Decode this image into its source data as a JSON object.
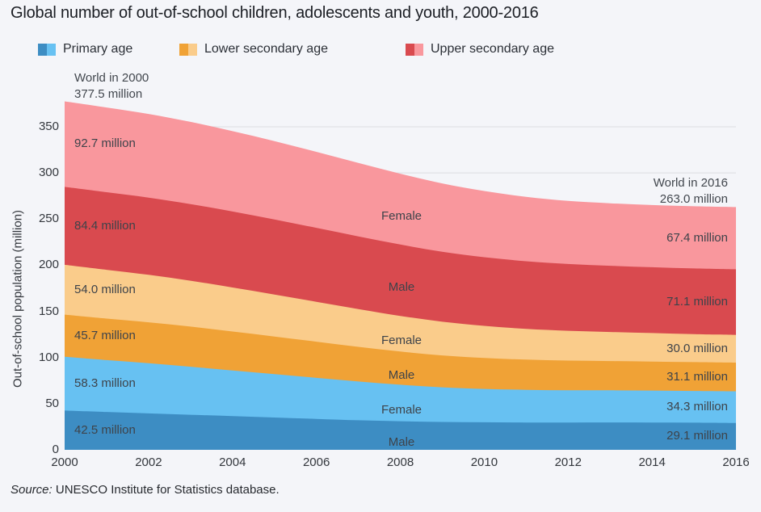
{
  "title": "Global number of out-of-school children, adolescents and youth, 2000-2016",
  "colors": {
    "background": "#F4F5F9",
    "gridline": "#E0E2E6",
    "primary_male": "#3D8DC3",
    "primary_female": "#67C1F2",
    "lower_secondary_male": "#F0A236",
    "lower_secondary_female": "#FACC8B",
    "upper_secondary_male": "#D94A4F",
    "upper_secondary_female": "#F9979D"
  },
  "legend": [
    {
      "label": "Primary age",
      "dark": "#3D8DC3",
      "light": "#67C1F2"
    },
    {
      "label": "Lower secondary age",
      "dark": "#F0A236",
      "light": "#FACC8B"
    },
    {
      "label": "Upper secondary age",
      "dark": "#D94A4F",
      "light": "#F9979D"
    }
  ],
  "annotations": {
    "start": {
      "line1": "World in 2000",
      "line2": "377.5 million"
    },
    "end": {
      "line1": "World in 2016",
      "line2": "263.0 million"
    }
  },
  "y_axis": {
    "title": "Out-of-school population (million)",
    "ticks": [
      0,
      50,
      100,
      150,
      200,
      250,
      300,
      350
    ]
  },
  "x_axis": {
    "ticks": [
      2000,
      2002,
      2004,
      2006,
      2008,
      2010,
      2012,
      2014,
      2016
    ]
  },
  "source": {
    "prefix": "Source:",
    "text": " UNESCO Institute for Statistics database."
  },
  "chart_data": {
    "type": "area",
    "stacked": true,
    "title": "Global number of out-of-school children, adolescents and youth, 2000-2016",
    "ylabel": "Out-of-school population (million)",
    "xlabel": "",
    "ylim": [
      0,
      385
    ],
    "grid": true,
    "legend_position": "top",
    "x": [
      2000,
      2001,
      2002,
      2003,
      2004,
      2005,
      2006,
      2007,
      2008,
      2009,
      2010,
      2011,
      2012,
      2013,
      2014,
      2015,
      2016
    ],
    "series": [
      {
        "name": "Primary age - Male",
        "gender": "Male",
        "color": "#3D8DC3",
        "label_start": "42.5 million",
        "label_end": "29.1 million",
        "values": [
          42.5,
          41.0,
          39.5,
          38.0,
          36.5,
          35.0,
          33.5,
          32.0,
          31.0,
          30.2,
          29.8,
          29.6,
          29.6,
          29.7,
          29.6,
          29.4,
          29.1
        ]
      },
      {
        "name": "Primary age - Female",
        "gender": "Female",
        "color": "#67C1F2",
        "label_start": "58.3 million",
        "label_end": "34.3 million",
        "values": [
          58.3,
          56.2,
          54.3,
          52.0,
          49.5,
          47.0,
          44.5,
          42.0,
          39.5,
          37.5,
          36.2,
          35.4,
          35.0,
          34.8,
          34.6,
          34.4,
          34.3
        ]
      },
      {
        "name": "Lower secondary age - Male",
        "gender": "Male",
        "color": "#F0A236",
        "label_start": "45.7 million",
        "label_end": "31.1 million",
        "values": [
          45.7,
          45.0,
          44.4,
          43.5,
          42.2,
          40.8,
          39.2,
          37.6,
          36.0,
          34.6,
          33.5,
          32.7,
          32.1,
          31.7,
          31.4,
          31.2,
          31.1
        ]
      },
      {
        "name": "Lower secondary age - Female",
        "gender": "Female",
        "color": "#FACC8B",
        "label_start": "54.0 million",
        "label_end": "30.0 million",
        "values": [
          54.0,
          52.8,
          51.4,
          49.7,
          47.7,
          45.5,
          43.2,
          40.9,
          38.6,
          36.5,
          34.8,
          33.4,
          32.3,
          31.5,
          30.9,
          30.4,
          30.0
        ]
      },
      {
        "name": "Upper secondary age - Male",
        "gender": "Male",
        "color": "#D94A4F",
        "label_start": "84.4 million",
        "label_end": "71.1 million",
        "values": [
          84.4,
          84.1,
          83.7,
          83.1,
          82.3,
          81.3,
          80.1,
          78.8,
          77.3,
          75.8,
          74.4,
          73.2,
          72.3,
          71.7,
          71.3,
          71.1,
          71.1
        ]
      },
      {
        "name": "Upper secondary age - Female",
        "gender": "Female",
        "color": "#F9979D",
        "label_start": "92.7 million",
        "label_end": "67.4 million",
        "values": [
          92.7,
          91.8,
          90.6,
          89.0,
          87.1,
          84.9,
          82.4,
          79.6,
          76.8,
          74.1,
          71.7,
          69.8,
          68.4,
          67.7,
          67.4,
          67.4,
          67.4
        ]
      }
    ],
    "totals": {
      "2000": 377.5,
      "2016": 263.0
    }
  }
}
